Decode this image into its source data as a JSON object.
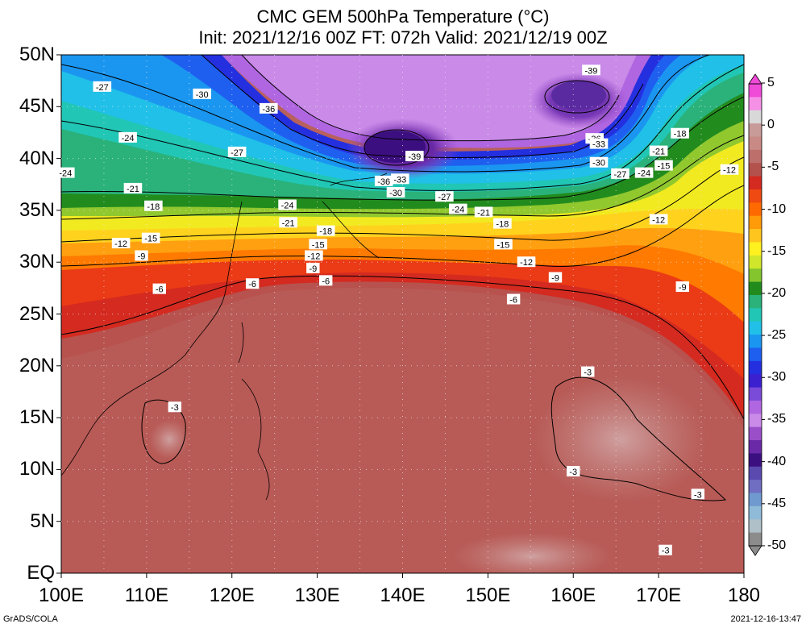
{
  "title": {
    "line1": "CMC GEM 500hPa Temperature (°C)",
    "line2": "Init: 2021/12/16 00Z  FT: 072h  Valid: 2021/12/19 00Z"
  },
  "axes": {
    "lat_labels": [
      "50N",
      "45N",
      "40N",
      "35N",
      "30N",
      "25N",
      "20N",
      "15N",
      "10N",
      "5N",
      "EQ"
    ],
    "lon_labels": [
      "100E",
      "110E",
      "120E",
      "130E",
      "140E",
      "150E",
      "160E",
      "170E",
      "180"
    ]
  },
  "colorbar": {
    "labels": [
      "5",
      "0",
      "-5",
      "-10",
      "-15",
      "-20",
      "-25",
      "-30",
      "-35",
      "-40",
      "-45",
      "-50"
    ],
    "colors": [
      "#f04ad8",
      "#f590e6",
      "#d8d8d8",
      "#c89a98",
      "#c98a86",
      "#bd6f6c",
      "#b3514c",
      "#d42a20",
      "#ee4a12",
      "#ff6a00",
      "#ff9a08",
      "#ffc51f",
      "#fff01f",
      "#cfe62a",
      "#84c52e",
      "#228b1e",
      "#2ab27a",
      "#21c6b5",
      "#20c0e8",
      "#1a96f0",
      "#1e5ff0",
      "#2430e0",
      "#3b20d0",
      "#7a4ad8",
      "#b066e0",
      "#c98ae8",
      "#9a4fc8",
      "#6a2aa8",
      "#3c0f80",
      "#5a4ab0",
      "#6f6ec2",
      "#6f9ad0",
      "#8fbbd8",
      "#b0c0c8",
      "#8c8c8c"
    ]
  },
  "contour_labels": [
    {
      "text": "-27",
      "lon": 104.8,
      "lat": 46.9
    },
    {
      "text": "-30",
      "lon": 116.5,
      "lat": 46.2
    },
    {
      "text": "-36",
      "lon": 124.3,
      "lat": 44.8
    },
    {
      "text": "-24",
      "lon": 107.8,
      "lat": 42.0
    },
    {
      "text": "-27",
      "lon": 120.6,
      "lat": 40.6
    },
    {
      "text": "-24",
      "lon": 100.5,
      "lat": 38.6
    },
    {
      "text": "-21",
      "lon": 108.4,
      "lat": 37.1
    },
    {
      "text": "-18",
      "lon": 110.8,
      "lat": 35.4
    },
    {
      "text": "-24",
      "lon": 126.5,
      "lat": 35.5
    },
    {
      "text": "-21",
      "lon": 126.6,
      "lat": 33.8
    },
    {
      "text": "-18",
      "lon": 131.0,
      "lat": 33.0
    },
    {
      "text": "-15",
      "lon": 110.5,
      "lat": 32.3
    },
    {
      "text": "-12",
      "lon": 107.0,
      "lat": 31.8
    },
    {
      "text": "-15",
      "lon": 130.1,
      "lat": 31.7
    },
    {
      "text": "-12",
      "lon": 129.6,
      "lat": 30.6
    },
    {
      "text": "-9",
      "lon": 109.4,
      "lat": 30.6
    },
    {
      "text": "-9",
      "lon": 129.5,
      "lat": 29.4
    },
    {
      "text": "-6",
      "lon": 111.5,
      "lat": 27.4
    },
    {
      "text": "-6",
      "lon": 131.0,
      "lat": 28.2
    },
    {
      "text": "-6",
      "lon": 122.4,
      "lat": 27.9
    },
    {
      "text": "-39",
      "lon": 141.4,
      "lat": 40.2
    },
    {
      "text": "-36",
      "lon": 137.8,
      "lat": 37.8
    },
    {
      "text": "-33",
      "lon": 139.7,
      "lat": 38.0
    },
    {
      "text": "-30",
      "lon": 139.2,
      "lat": 36.7
    },
    {
      "text": "-27",
      "lon": 144.9,
      "lat": 36.3
    },
    {
      "text": "-24",
      "lon": 146.5,
      "lat": 35.1
    },
    {
      "text": "-21",
      "lon": 149.5,
      "lat": 34.8
    },
    {
      "text": "-18",
      "lon": 151.7,
      "lat": 33.7
    },
    {
      "text": "-15",
      "lon": 151.8,
      "lat": 31.7
    },
    {
      "text": "-12",
      "lon": 154.5,
      "lat": 30.0
    },
    {
      "text": "-9",
      "lon": 157.9,
      "lat": 28.5
    },
    {
      "text": "-6",
      "lon": 153.0,
      "lat": 26.4
    },
    {
      "text": "-39",
      "lon": 162.1,
      "lat": 48.5
    },
    {
      "text": "-36",
      "lon": 162.5,
      "lat": 41.9
    },
    {
      "text": "-33",
      "lon": 163.0,
      "lat": 41.4
    },
    {
      "text": "-30",
      "lon": 163.0,
      "lat": 39.6
    },
    {
      "text": "-27",
      "lon": 165.5,
      "lat": 38.5
    },
    {
      "text": "-24",
      "lon": 168.3,
      "lat": 38.6
    },
    {
      "text": "-21",
      "lon": 170.0,
      "lat": 40.7
    },
    {
      "text": "-18",
      "lon": 172.5,
      "lat": 42.4
    },
    {
      "text": "-15",
      "lon": 170.6,
      "lat": 39.3
    },
    {
      "text": "-12",
      "lon": 178.3,
      "lat": 38.9
    },
    {
      "text": "-12",
      "lon": 170.0,
      "lat": 34.1
    },
    {
      "text": "-9",
      "lon": 172.8,
      "lat": 27.6
    },
    {
      "text": "-3",
      "lon": 161.7,
      "lat": 19.4
    },
    {
      "text": "-3",
      "lon": 113.3,
      "lat": 16.0
    },
    {
      "text": "-3",
      "lon": 160.0,
      "lat": 9.8
    },
    {
      "text": "-3",
      "lon": 174.6,
      "lat": 7.6
    },
    {
      "text": "-3",
      "lon": 170.8,
      "lat": 2.2
    }
  ],
  "footer": {
    "credit": "GrADS/COLA",
    "timestamp": "2021-12-16-13:47"
  }
}
